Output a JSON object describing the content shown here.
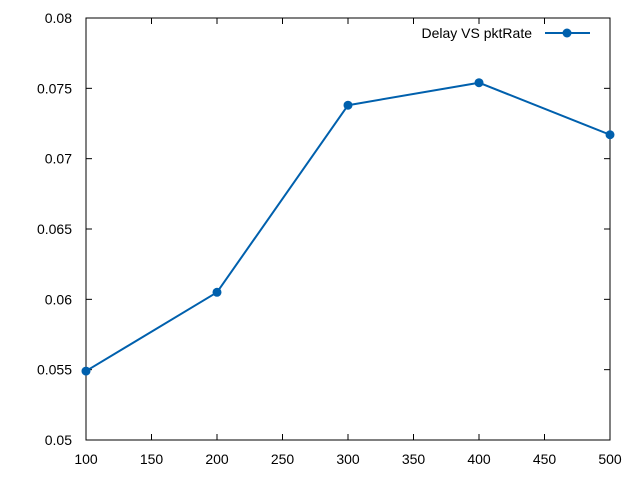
{
  "chart_data": {
    "type": "line",
    "title": "",
    "xlabel": "",
    "ylabel": "",
    "xlim": [
      100,
      500
    ],
    "ylim": [
      0.05,
      0.08
    ],
    "x_ticks": [
      100,
      150,
      200,
      250,
      300,
      350,
      400,
      450,
      500
    ],
    "x_tick_labels": [
      "100",
      "150",
      "200",
      "250",
      "300",
      "350",
      "400",
      "450",
      "500"
    ],
    "y_ticks": [
      0.05,
      0.055,
      0.06,
      0.065,
      0.07,
      0.075,
      0.08
    ],
    "y_tick_labels": [
      "0.05",
      "0.055",
      "0.06",
      "0.065",
      "0.07",
      "0.075",
      "0.08"
    ],
    "grid": false,
    "legend_position": "top-right",
    "series": [
      {
        "name": "Delay VS pktRate",
        "color": "#0060ad",
        "marker": "circle",
        "x": [
          100,
          200,
          300,
          400,
          500
        ],
        "y": [
          0.0549,
          0.0605,
          0.0738,
          0.0754,
          0.0717
        ]
      }
    ]
  }
}
